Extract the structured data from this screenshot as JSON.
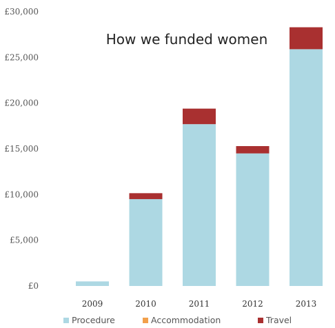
{
  "chart_data": {
    "type": "bar",
    "stacked": true,
    "title": "How we funded women",
    "categories": [
      "2009",
      "2010",
      "2011",
      "2012",
      "2013"
    ],
    "series": [
      {
        "name": "Procedure",
        "color": "#ADD8E3",
        "values": [
          500,
          9500,
          17700,
          14500,
          25900
        ]
      },
      {
        "name": "Accommodation",
        "color": "#F2A04B",
        "values": [
          0,
          0,
          0,
          0,
          0
        ]
      },
      {
        "name": "Travel",
        "color": "#A93030",
        "values": [
          0,
          650,
          1700,
          800,
          2400
        ]
      }
    ],
    "ylim": [
      0,
      30000
    ],
    "yticks": [
      {
        "value": 0,
        "label": "£0"
      },
      {
        "value": 5000,
        "label": "£5,000"
      },
      {
        "value": 10000,
        "label": "£10,000"
      },
      {
        "value": 15000,
        "label": "£15,000"
      },
      {
        "value": 20000,
        "label": "£20,000"
      },
      {
        "value": 25000,
        "label": "£25,000"
      },
      {
        "value": 30000,
        "label": "£30,000"
      }
    ],
    "xlabel": "",
    "ylabel": "",
    "grid": false,
    "legend": "bottom"
  }
}
